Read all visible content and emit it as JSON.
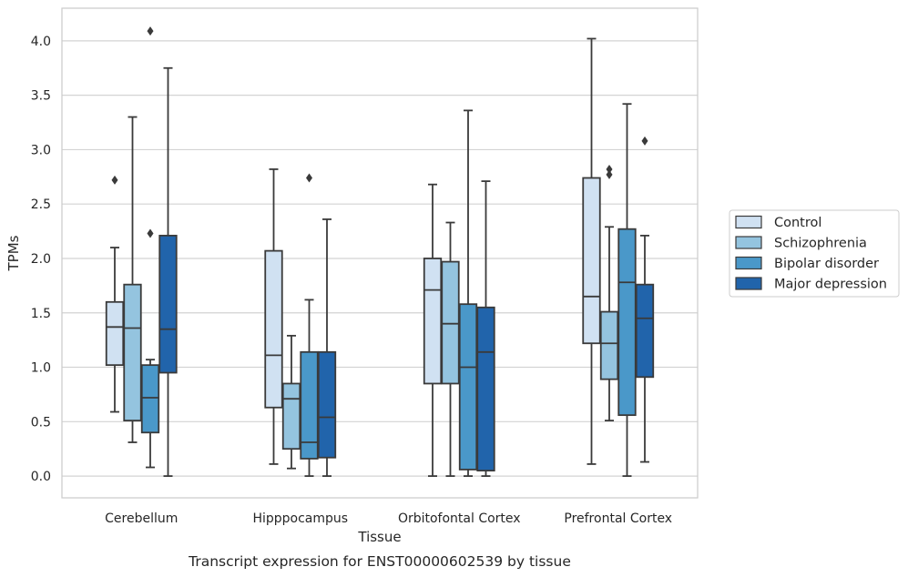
{
  "caption": "Transcript expression for ENST00000602539 by tissue",
  "chart_data": {
    "type": "box",
    "title": "",
    "xlabel": "Tissue",
    "ylabel": "TPMs",
    "ylim": [
      -0.2,
      4.3
    ],
    "y_ticks": [
      "0.0",
      "0.5",
      "1.0",
      "1.5",
      "2.0",
      "2.5",
      "3.0",
      "3.5",
      "4.0"
    ],
    "grid": "horizontal",
    "legend_position": "right",
    "categories": [
      "Cerebellum",
      "Hipppocampus",
      "Orbitofontal Cortex",
      "Prefrontal Cortex"
    ],
    "series": [
      {
        "name": "Control",
        "color": "#d0e1f2",
        "boxes": [
          {
            "whisker_low": 0.59,
            "q1": 1.02,
            "median": 1.37,
            "q3": 1.6,
            "whisker_high": 2.1,
            "outliers": [
              2.72
            ]
          },
          {
            "whisker_low": 0.11,
            "q1": 0.63,
            "median": 1.11,
            "q3": 2.07,
            "whisker_high": 2.82,
            "outliers": []
          },
          {
            "whisker_low": 0.0,
            "q1": 0.85,
            "median": 1.71,
            "q3": 2.0,
            "whisker_high": 2.68,
            "outliers": []
          },
          {
            "whisker_low": 0.11,
            "q1": 1.22,
            "median": 1.65,
            "q3": 2.74,
            "whisker_high": 4.02,
            "outliers": []
          }
        ]
      },
      {
        "name": "Schizophrenia",
        "color": "#94c4df",
        "boxes": [
          {
            "whisker_low": 0.31,
            "q1": 0.51,
            "median": 1.36,
            "q3": 1.76,
            "whisker_high": 3.3,
            "outliers": []
          },
          {
            "whisker_low": 0.07,
            "q1": 0.25,
            "median": 0.71,
            "q3": 0.85,
            "whisker_high": 1.29,
            "outliers": []
          },
          {
            "whisker_low": 0.0,
            "q1": 0.85,
            "median": 1.4,
            "q3": 1.97,
            "whisker_high": 2.33,
            "outliers": []
          },
          {
            "whisker_low": 0.51,
            "q1": 0.89,
            "median": 1.22,
            "q3": 1.51,
            "whisker_high": 2.29,
            "outliers": [
              2.77,
              2.82
            ]
          }
        ]
      },
      {
        "name": "Bipolar disorder",
        "color": "#4a98c9",
        "boxes": [
          {
            "whisker_low": 0.08,
            "q1": 0.4,
            "median": 0.72,
            "q3": 1.02,
            "whisker_high": 1.07,
            "outliers": [
              2.23,
              4.09
            ]
          },
          {
            "whisker_low": 0.0,
            "q1": 0.16,
            "median": 0.31,
            "q3": 1.14,
            "whisker_high": 1.62,
            "outliers": [
              2.74
            ]
          },
          {
            "whisker_low": 0.0,
            "q1": 0.06,
            "median": 1.0,
            "q3": 1.58,
            "whisker_high": 3.36,
            "outliers": []
          },
          {
            "whisker_low": 0.0,
            "q1": 0.56,
            "median": 1.78,
            "q3": 2.27,
            "whisker_high": 3.42,
            "outliers": []
          }
        ]
      },
      {
        "name": "Major depression",
        "color": "#2164ab",
        "boxes": [
          {
            "whisker_low": 0.0,
            "q1": 0.95,
            "median": 1.35,
            "q3": 2.21,
            "whisker_high": 3.75,
            "outliers": []
          },
          {
            "whisker_low": 0.0,
            "q1": 0.17,
            "median": 0.54,
            "q3": 1.14,
            "whisker_high": 2.36,
            "outliers": []
          },
          {
            "whisker_low": 0.0,
            "q1": 0.05,
            "median": 1.14,
            "q3": 1.55,
            "whisker_high": 2.71,
            "outliers": []
          },
          {
            "whisker_low": 0.13,
            "q1": 0.91,
            "median": 1.45,
            "q3": 1.76,
            "whisker_high": 2.21,
            "outliers": [
              3.08
            ]
          }
        ]
      }
    ]
  }
}
